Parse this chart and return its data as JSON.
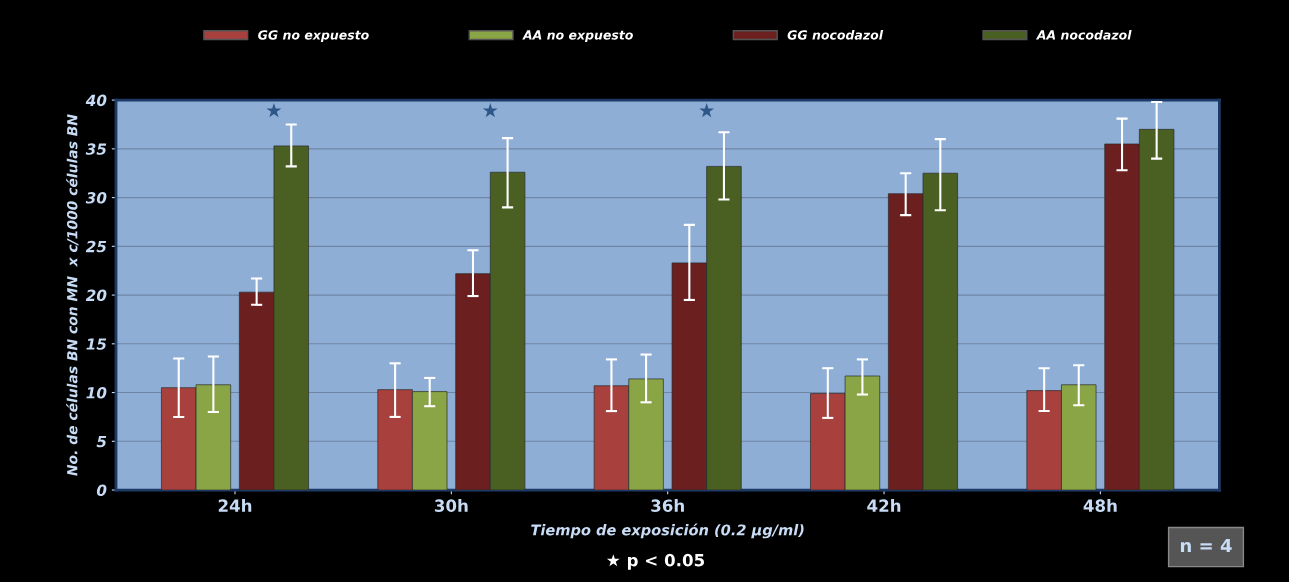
{
  "chart_data": {
    "type": "bar",
    "xlabel": "Tiempo de exposición (0.2 µg/ml)",
    "ylabel": "No. de células BN con MN  x c/1000 células BN",
    "categories": [
      "24h",
      "30h",
      "36h",
      "42h",
      "48h"
    ],
    "series": [
      {
        "name": "GG no expuesto",
        "color": "#a8403e",
        "values": [
          10.5,
          10.3,
          10.7,
          9.9,
          10.2
        ],
        "errors": [
          [
            7.5,
            13.5
          ],
          [
            7.5,
            13.0
          ],
          [
            8.1,
            13.4
          ],
          [
            7.4,
            12.5
          ],
          [
            8.1,
            12.5
          ]
        ]
      },
      {
        "name": "AA no expuesto",
        "color": "#8aa545",
        "values": [
          10.8,
          10.1,
          11.4,
          11.7,
          10.8
        ],
        "errors": [
          [
            8.0,
            13.7
          ],
          [
            8.6,
            11.5
          ],
          [
            9.0,
            13.9
          ],
          [
            9.8,
            13.4
          ],
          [
            8.7,
            12.8
          ]
        ]
      },
      {
        "name": "GG nocodazol",
        "color": "#6b1f1f",
        "values": [
          20.3,
          22.2,
          23.3,
          30.4,
          35.5
        ],
        "errors": [
          [
            19.0,
            21.7
          ],
          [
            19.9,
            24.6
          ],
          [
            19.5,
            27.2
          ],
          [
            28.2,
            32.5
          ],
          [
            32.8,
            38.1
          ]
        ]
      },
      {
        "name": "AA nocodazol",
        "color": "#4a5f22",
        "values": [
          35.3,
          32.6,
          33.2,
          32.5,
          37.0
        ],
        "errors": [
          [
            33.2,
            37.5
          ],
          [
            29.0,
            36.1
          ],
          [
            29.8,
            36.7
          ],
          [
            28.7,
            36.0
          ],
          [
            34.0,
            39.8
          ]
        ]
      }
    ],
    "ylim": [
      0,
      40
    ],
    "yticks": [
      0,
      5,
      10,
      15,
      20,
      25,
      30,
      35,
      40
    ],
    "grid": "y",
    "legend": "top",
    "annotations": [
      "★",
      "★",
      "★",
      "★ p < 0.05",
      "n = 4"
    ]
  }
}
